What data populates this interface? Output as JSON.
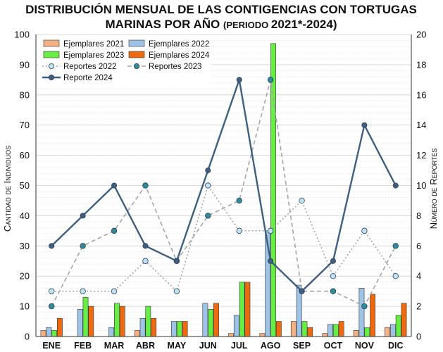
{
  "chart_data": {
    "type": "bar",
    "title_line1": "DISTRIBUCIÓN MENSUAL DE LAS CONTIGENCIAS CON TORTUGAS",
    "title_line2_main": "MARINAS POR AÑO ",
    "title_line2_small": "(PERIODO ",
    "title_line2_years": "2021*-2024)",
    "ylabel": "Cantidad de Individuos",
    "y2label": "Número de Reportes",
    "ylim": [
      0,
      100
    ],
    "y2lim": [
      0,
      20
    ],
    "y_ticks": [
      "0",
      "10",
      "20",
      "30",
      "40",
      "50",
      "60",
      "70",
      "80",
      "90",
      "100"
    ],
    "y2_ticks": [
      "0",
      "2",
      "4",
      "6",
      "8",
      "10",
      "12",
      "14",
      "16",
      "18",
      "20"
    ],
    "grid": true,
    "categories": [
      "ENE",
      "FEB",
      "MAR",
      "ABR",
      "MAY",
      "JUN",
      "JUL",
      "AGO",
      "SEP",
      "OCT",
      "NOV",
      "DIC"
    ],
    "bar_series": [
      {
        "name": "Ejemplares 2021",
        "color": "#f4b183",
        "values": [
          2,
          0,
          0,
          2,
          0,
          0,
          1,
          1,
          5,
          1,
          2,
          3
        ]
      },
      {
        "name": "Ejemplares 2022",
        "color": "#9dc3e6",
        "values": [
          3,
          9,
          3,
          6,
          5,
          11,
          7,
          35,
          17,
          4,
          16,
          4
        ]
      },
      {
        "name": "Ejemplares 2023",
        "color": "#66ee44",
        "values": [
          2,
          13,
          11,
          10,
          5,
          9,
          18,
          97,
          5,
          4,
          3,
          7
        ]
      },
      {
        "name": "Ejemplares 2024",
        "color": "#ee6a10",
        "values": [
          6,
          10,
          10,
          6,
          5,
          11,
          18,
          5,
          3,
          5,
          14,
          11
        ]
      }
    ],
    "line_series": [
      {
        "name": "Reportes 2022",
        "color": "#a6a6a6",
        "marker": "#bfe3f5",
        "style": "dotted",
        "values": [
          3,
          3,
          3,
          5,
          3,
          10,
          7,
          7,
          9,
          4,
          7,
          4
        ]
      },
      {
        "name": "Reportes 2023",
        "color": "#a6a6a6",
        "marker": "#2e8b9a",
        "style": "dashed",
        "values": [
          2,
          6,
          7,
          10,
          5,
          8,
          9,
          17,
          3,
          3,
          2,
          6
        ]
      },
      {
        "name": "Reporte 2024",
        "color": "#3f5f82",
        "marker": "#3f5f82",
        "style": "solid",
        "values": [
          6,
          8,
          10,
          6,
          5,
          11,
          17,
          5,
          3,
          5,
          14,
          10
        ]
      }
    ],
    "legend_position": "top-left"
  }
}
